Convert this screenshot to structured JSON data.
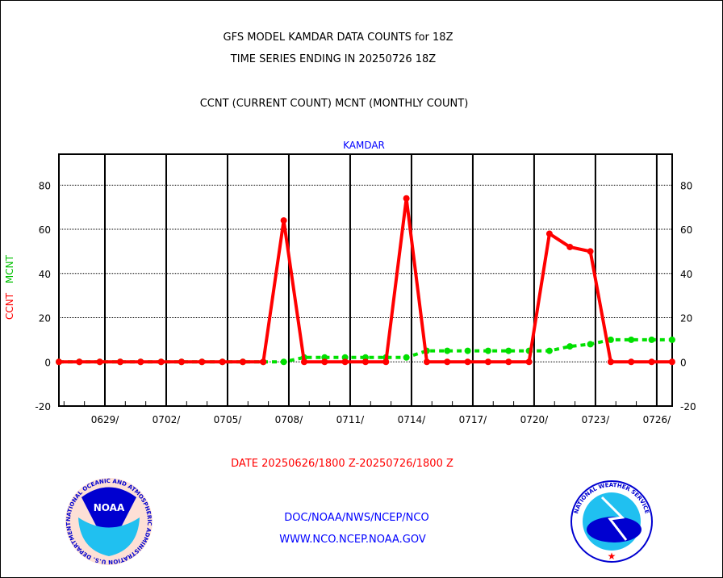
{
  "header": {
    "title_line1": "GFS MODEL KAMDAR DATA COUNTS for 18Z",
    "title_line2": "TIME SERIES ENDING IN 20250726 18Z",
    "subtitle": "CCNT (CURRENT COUNT) MCNT (MONTHLY COUNT)"
  },
  "footer": {
    "date_range": "DATE 20250626/1800 Z-20250726/1800 Z",
    "org_path": "DOC/NOAA/NWS/NCEP/NCO",
    "website": "WWW.NCO.NCEP.NOAA.GOV",
    "noaa_logo_text": "NOAA",
    "noaa_logo_ring": "NATIONAL OCEANIC AND ATMOSPHERIC ADMINISTRATION U.S. DEPARTMENT OF COMMERCE",
    "nws_logo_ring": "NATIONAL WEATHER SERVICE"
  },
  "chart_data": {
    "type": "line",
    "title": "KAMDAR",
    "xlabel": "",
    "ylabel_series": [
      "CCNT",
      "MCNT"
    ],
    "ylim": [
      -20,
      94
    ],
    "yticks": [
      -20,
      0,
      20,
      40,
      60,
      80
    ],
    "x_day_offsets": [
      0,
      1,
      2,
      3,
      4,
      5,
      6,
      7,
      8,
      9,
      10,
      11,
      12,
      13,
      14,
      15,
      16,
      17,
      18,
      19,
      20,
      21,
      22,
      23,
      24,
      25,
      26,
      27,
      28,
      29,
      30
    ],
    "x_tick_labels": [
      "0629/",
      "0702/",
      "0705/",
      "0708/",
      "0711/",
      "0714/",
      "0717/",
      "0720/",
      "0723/",
      "0726/"
    ],
    "x_tick_day_offsets": [
      2.25,
      5.25,
      8.25,
      11.25,
      14.25,
      17.25,
      20.25,
      23.25,
      26.25,
      29.25
    ],
    "grid": true,
    "colors": {
      "CCNT": "#ff0000",
      "MCNT": "#00e000",
      "title": "#0000ff"
    },
    "series": [
      {
        "name": "CCNT",
        "values": [
          0,
          0,
          0,
          0,
          0,
          0,
          0,
          0,
          0,
          0,
          0,
          64,
          0,
          0,
          0,
          0,
          0,
          74,
          0,
          0,
          0,
          0,
          0,
          0,
          58,
          52,
          50,
          0,
          0,
          0,
          0
        ]
      },
      {
        "name": "MCNT",
        "values": [
          0,
          0,
          0,
          0,
          0,
          0,
          0,
          0,
          0,
          0,
          0,
          0,
          2,
          2,
          2,
          2,
          2,
          2,
          5,
          5,
          5,
          5,
          5,
          5,
          5,
          7,
          8,
          10,
          10,
          10,
          10
        ]
      }
    ]
  }
}
